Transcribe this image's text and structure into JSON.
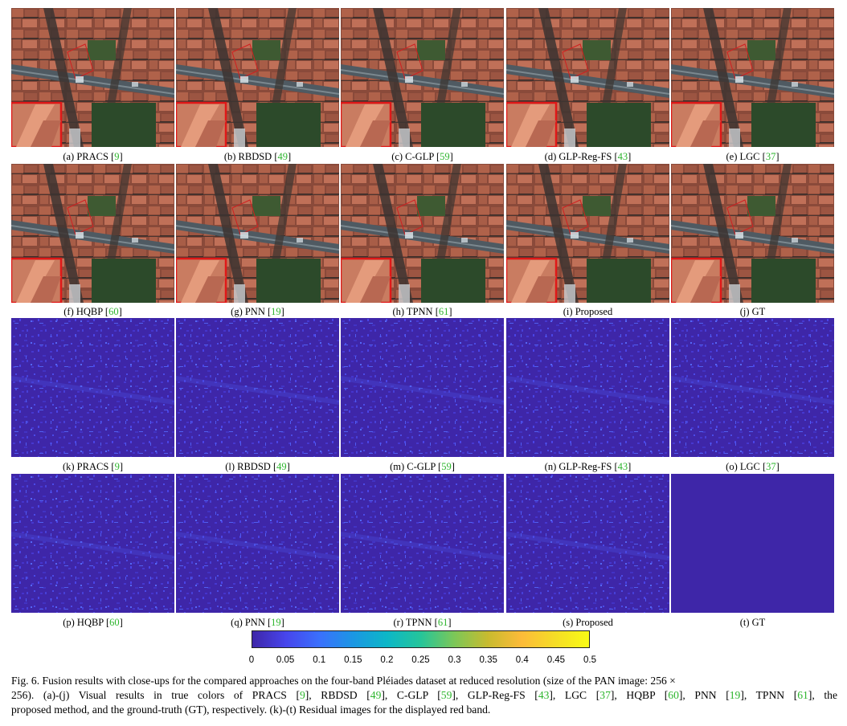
{
  "panels": [
    {
      "label": "(a) PRACS",
      "ref": "9"
    },
    {
      "label": "(b) RBDSD",
      "ref": "49"
    },
    {
      "label": "(c) C-GLP",
      "ref": "59"
    },
    {
      "label": "(d) GLP-Reg-FS",
      "ref": "43"
    },
    {
      "label": "(e) LGC",
      "ref": "37"
    },
    {
      "label": "(f) HQBP",
      "ref": "60"
    },
    {
      "label": "(g) PNN",
      "ref": "19"
    },
    {
      "label": "(h) TPNN",
      "ref": "61"
    },
    {
      "label": "(i) Proposed",
      "ref": ""
    },
    {
      "label": "(j) GT",
      "ref": ""
    },
    {
      "label": "(k) PRACS",
      "ref": "9"
    },
    {
      "label": "(l) RBDSD",
      "ref": "49"
    },
    {
      "label": "(m) C-GLP",
      "ref": "59"
    },
    {
      "label": "(n) GLP-Reg-FS",
      "ref": "43"
    },
    {
      "label": "(o) LGC",
      "ref": "37"
    },
    {
      "label": "(p) HQBP",
      "ref": "60"
    },
    {
      "label": "(q) PNN",
      "ref": "19"
    },
    {
      "label": "(r) TPNN",
      "ref": "61"
    },
    {
      "label": "(s) Proposed",
      "ref": ""
    },
    {
      "label": "(t) GT",
      "ref": ""
    }
  ],
  "colorbar": {
    "ticks": [
      "0",
      "0.05",
      "0.1",
      "0.15",
      "0.2",
      "0.25",
      "0.3",
      "0.35",
      "0.4",
      "0.45",
      "0.5"
    ],
    "range": [
      0,
      0.5
    ],
    "colormap": "parula"
  },
  "caption": {
    "line1": "Fig. 6.  Fusion results with close-ups for the compared approaches on the four-band Pléiades dataset at reduced resolution (size of the PAN image: 256 ×",
    "line2_a": "256). (a)-(j) Visual results in true colors of PRACS [",
    "line2_r1": "9",
    "line2_b": "], RBDSD [",
    "line2_r2": "49",
    "line2_c": "], C-GLP [",
    "line2_r3": "59",
    "line2_d": "], GLP-Reg-FS [",
    "line2_r4": "43",
    "line2_e": "], LGC [",
    "line2_r5": "37",
    "line2_f": "], HQBP [",
    "line2_r6": "60",
    "line2_g": "], PNN [",
    "line2_r7": "19",
    "line2_h": "], TPNN [",
    "line2_r8": "61",
    "line2_i": "], the",
    "line3": "proposed method, and the ground-truth (GT), respectively. (k)-(t) Residual images for the displayed red band."
  },
  "colors": {
    "reference_link": "#2db52d",
    "closeup_frame": "#e01818",
    "residual_background": "#3e26a8"
  }
}
